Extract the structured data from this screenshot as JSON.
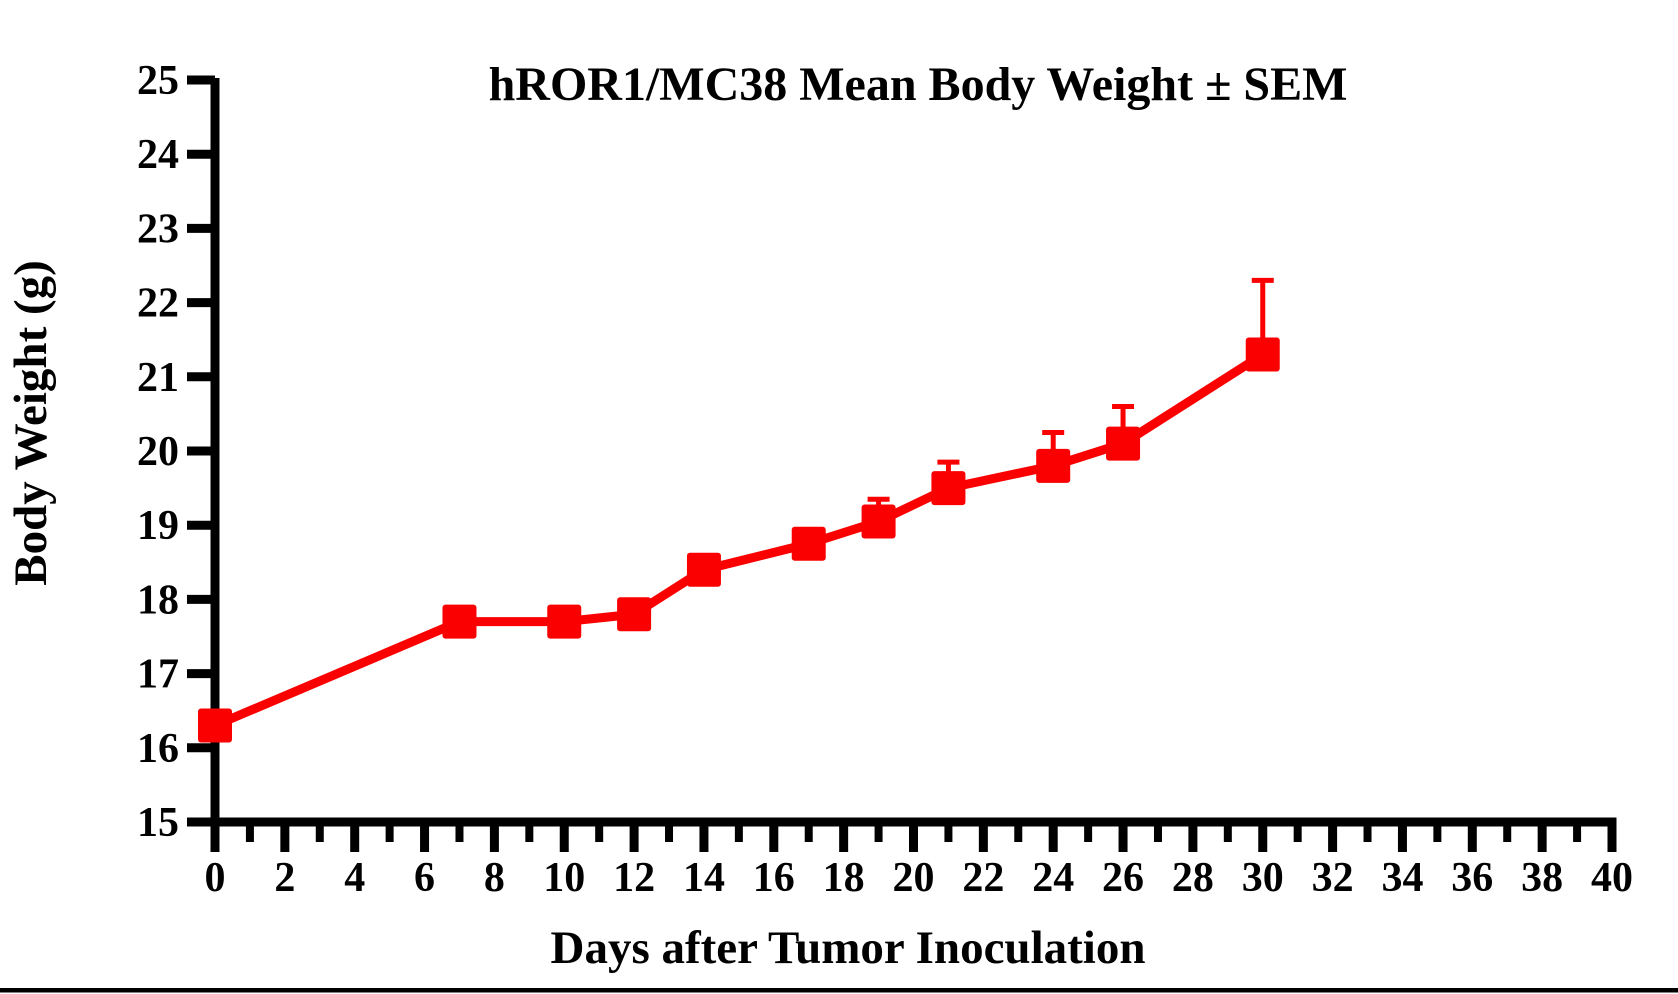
{
  "page": {
    "background_color": "#ffffff",
    "bottom_rule_color": "#000000"
  },
  "chart_data": {
    "type": "line",
    "title": "hROR1/MC38 Mean Body Weight ± SEM",
    "xlabel": "Days after Tumor Inoculation",
    "ylabel": "Body Weight (g)",
    "xlim": [
      0,
      40
    ],
    "ylim": [
      15,
      25
    ],
    "x_major_ticks": [
      0,
      2,
      4,
      6,
      8,
      10,
      12,
      14,
      16,
      18,
      20,
      22,
      24,
      26,
      28,
      30,
      32,
      34,
      36,
      38,
      40
    ],
    "x_minor_ticks": [
      1,
      3,
      5,
      7,
      9,
      11,
      13,
      15,
      17,
      19,
      21,
      23,
      25,
      27,
      29,
      31,
      33,
      35,
      37,
      39
    ],
    "y_ticks": [
      15,
      16,
      17,
      18,
      19,
      20,
      21,
      22,
      23,
      24,
      25
    ],
    "grid": false,
    "legend_position": "none",
    "axis_color": "#000000",
    "error_bars": "upper_only_sem",
    "series": [
      {
        "name": "hROR1/MC38 mean body weight",
        "color": "#fa0000",
        "marker": "square",
        "x": [
          0,
          7,
          10,
          12,
          14,
          17,
          19,
          21,
          24,
          26,
          30
        ],
        "y": [
          16.3,
          17.7,
          17.7,
          17.8,
          18.4,
          18.75,
          19.05,
          19.5,
          19.8,
          20.1,
          21.3
        ],
        "sem": [
          0,
          0,
          0,
          0,
          0,
          0,
          0.3,
          0.35,
          0.45,
          0.5,
          1.0
        ]
      }
    ]
  }
}
